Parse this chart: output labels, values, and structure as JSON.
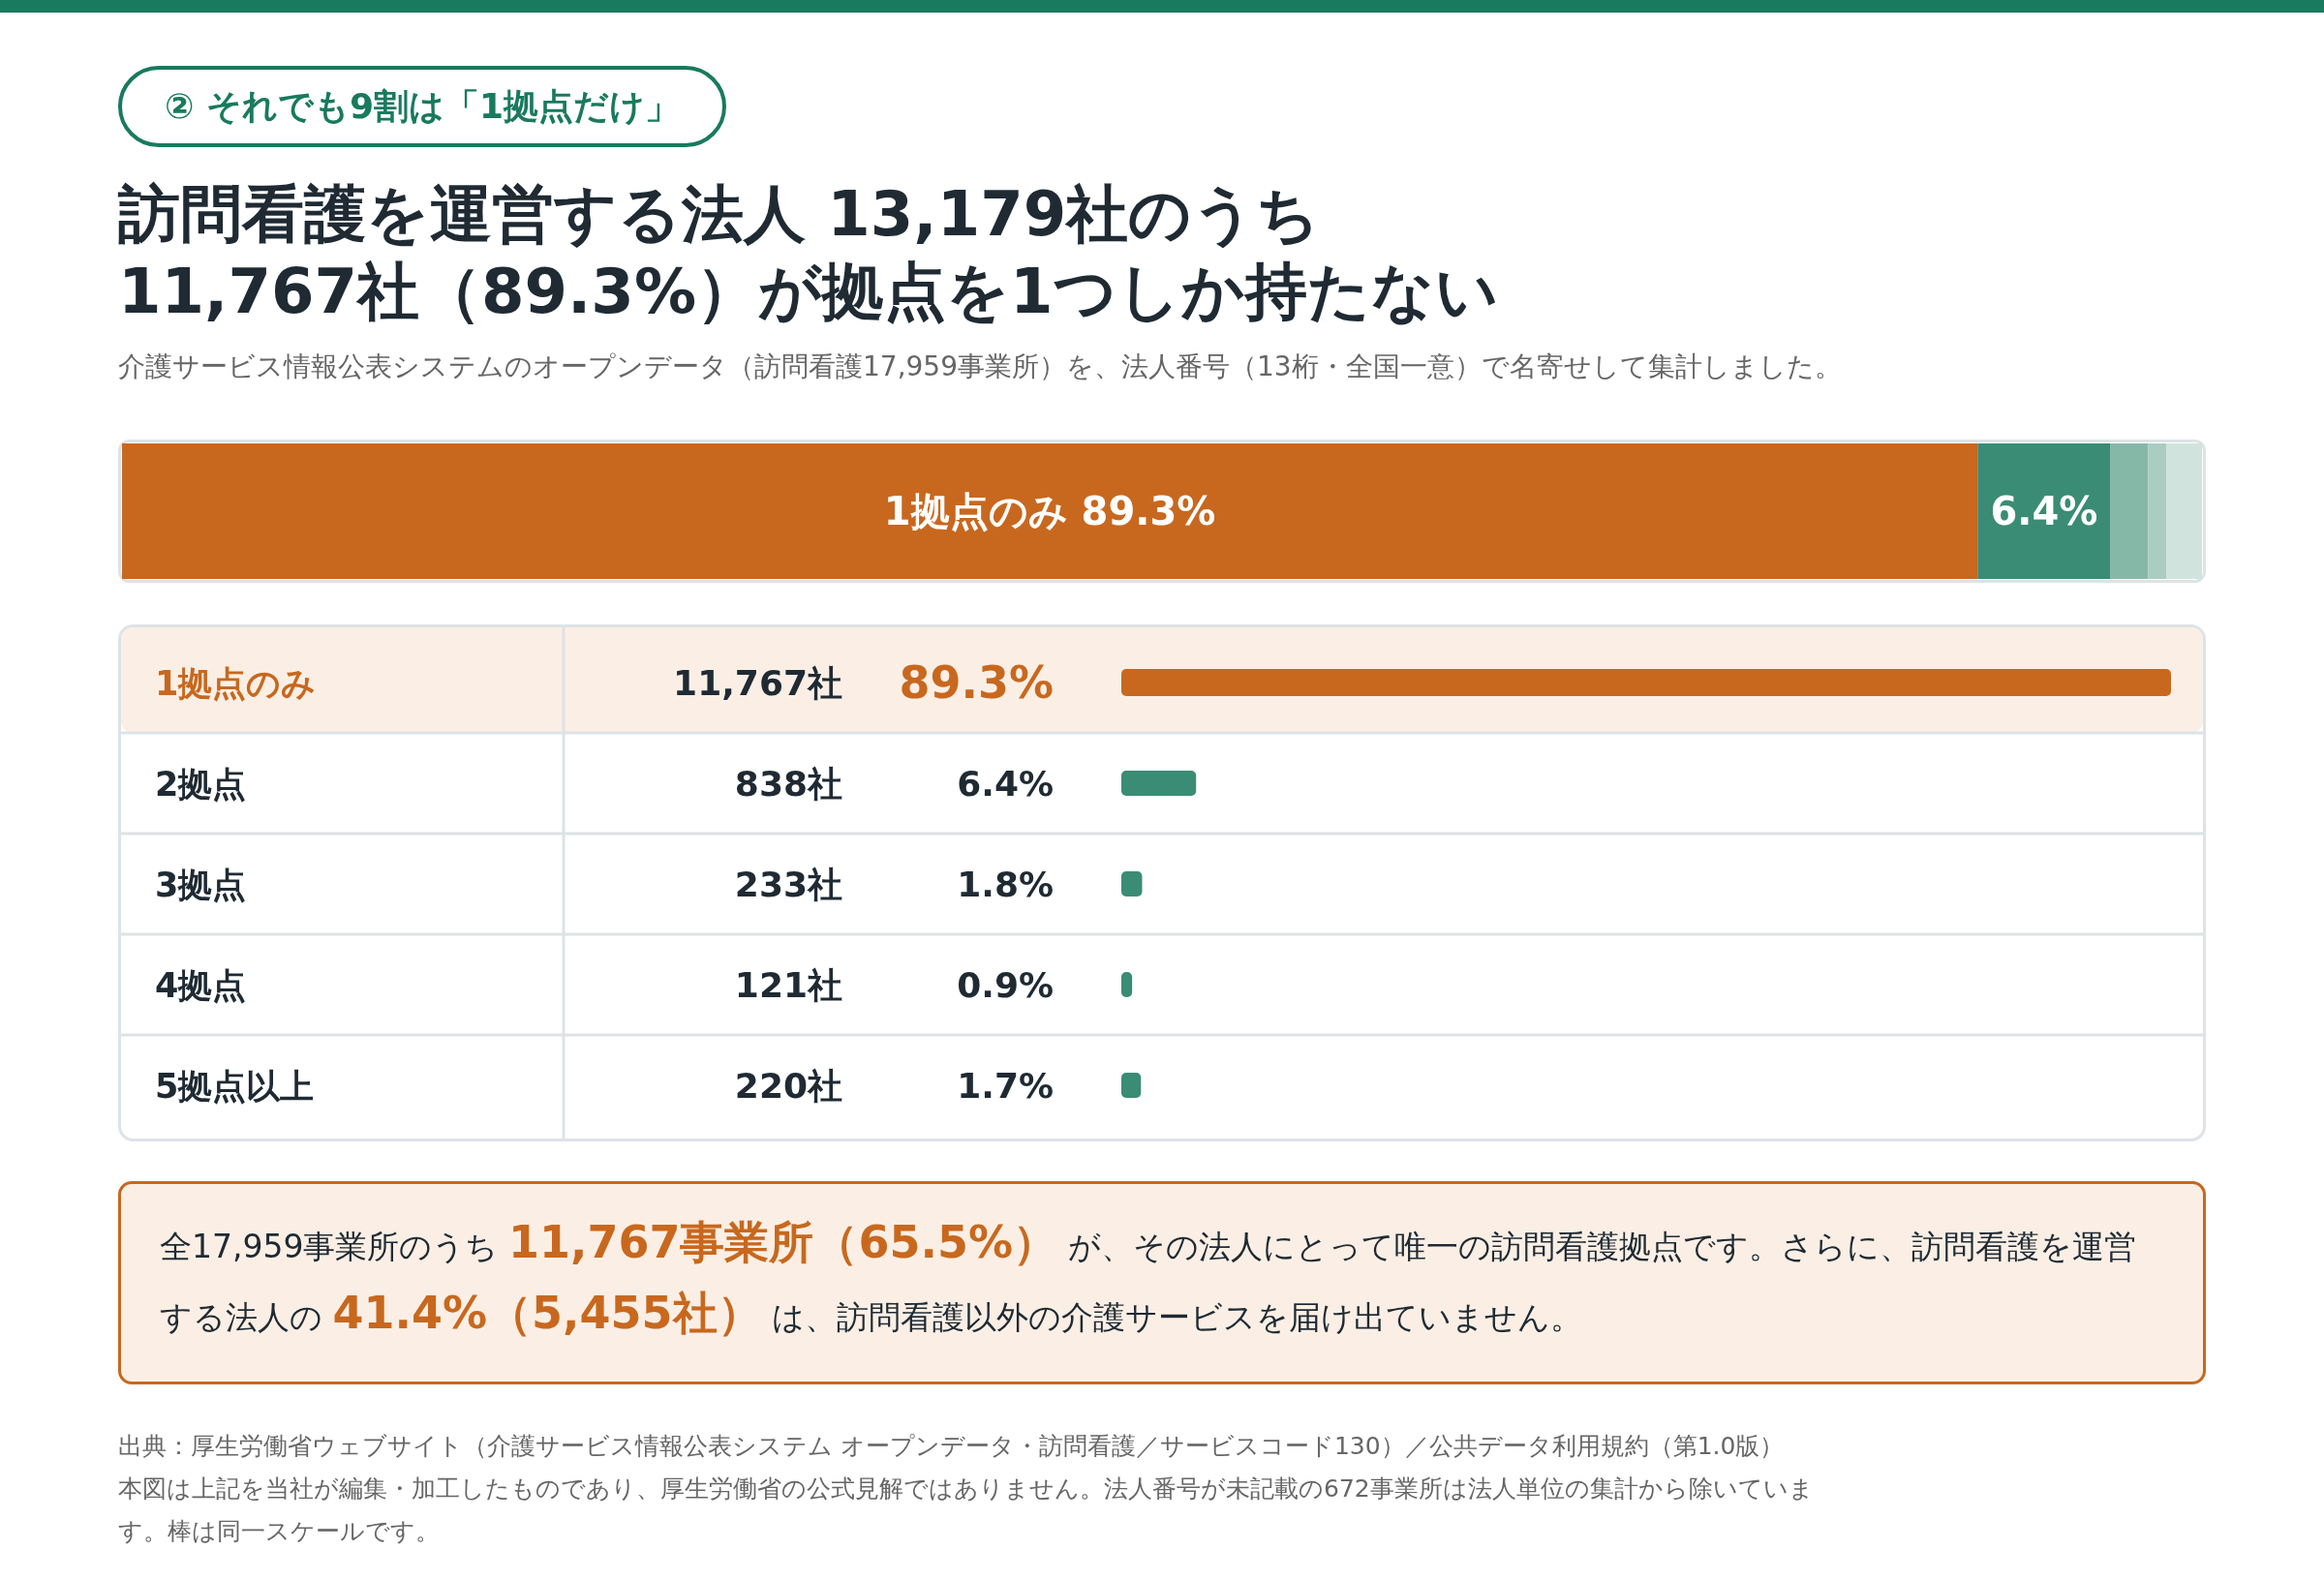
{
  "chart_data": [
    {
      "type": "bar",
      "orientation": "horizontal",
      "stacked": true,
      "title": "訪問看護を運営する法人 13,179社のうち",
      "subtitle": "11,767社（89.3%）が拠点を1つしか持たない",
      "categories": [
        null
      ],
      "series": [
        {
          "name": "1拠点のみ",
          "color": "#c8681e",
          "values": [
            89.3
          ],
          "value_labels": [
            "89.3%"
          ]
        },
        {
          "color": "#3a8c74",
          "values": [
            6.4
          ],
          "value_labels": [
            "6.4%"
          ]
        },
        {
          "color": "#86b8a8",
          "values": [
            1.8
          ]
        },
        {
          "color": "#a9cdc1",
          "values": [
            0.9
          ]
        },
        {
          "color": "#d0e4dd",
          "values": [
            1.7
          ]
        }
      ],
      "annotations": [
        "② それでも9割は「1拠点だけ」",
        "介護サービス情報公表システムのオープンデータ（訪問看護17,959事業所）を、法人番号（13桁・全国一意）で名寄せして集計しました。",
        "全17,959事業所のうち",
        "11,767事業所（65.5%）",
        "が、その法人にとって唯一の訪問看護拠点です。さらに、訪問看護を運営する法人の",
        "41.4%（5,455社）",
        "は、訪問看護以外の介護サービスを届け出ていません。",
        "出典：厚生労働省ウェブサイト（介護サービス情報公表システム オープンデータ・訪問看護／サービスコード130）／公共データ利用規約（第1.0版）",
        "本図は上記を当社が編集・加工したものであり、厚生労働省の公式見解ではありません。法人番号が未記載の672事業所は法人単位の集計から除いています。棒は同一スケールです。"
      ]
    },
    {
      "type": "bar",
      "orientation": "horizontal",
      "categories": [
        "1拠点のみ",
        "2拠点",
        "3拠点",
        "4拠点",
        "5拠点以上"
      ],
      "values": [
        11767,
        838,
        233,
        121,
        220
      ],
      "value_labels": [
        "11,767社",
        "838社",
        "233社",
        "121社",
        "220社"
      ],
      "colors": [
        "#c8681e",
        "#3a8c74",
        "#3a8c74",
        "#3a8c74",
        "#3a8c74"
      ],
      "annotations": [
        "89.3%",
        "6.4%",
        "1.8%",
        "0.9%",
        "1.7%"
      ]
    }
  ]
}
